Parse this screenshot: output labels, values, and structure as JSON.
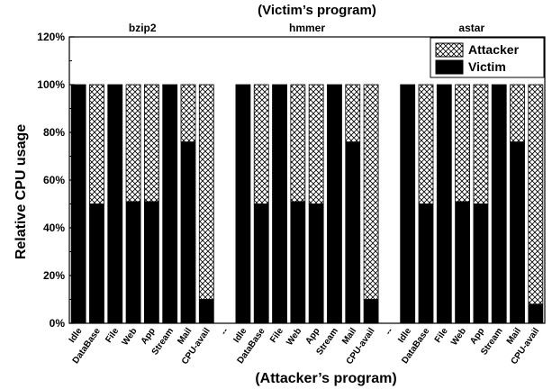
{
  "chart_data": {
    "type": "bar",
    "stacked": true,
    "title": "(Victim’s program)",
    "xlabel": "(Attacker’s program)",
    "ylabel": "Relative CPU usage",
    "ylim": [
      0,
      120
    ],
    "yticks": [
      "0%",
      "20%",
      "40%",
      "60%",
      "80%",
      "100%",
      "120%"
    ],
    "grid": false,
    "legend_position": "top-right",
    "series": [
      {
        "name": "Attacker",
        "color": "#ffffff",
        "pattern": "crosshatch"
      },
      {
        "name": "Victim",
        "color": "#000000",
        "pattern": "solid"
      }
    ],
    "categories": [
      "Idle",
      "DataBase",
      "File",
      "Web",
      "App",
      "Stream",
      "Mail",
      "CPU-avail",
      "--",
      "Idle",
      "DataBase",
      "File",
      "Web",
      "App",
      "Stream",
      "Mail",
      "CPU-avail",
      "--",
      "Idle",
      "DataBase",
      "File",
      "Web",
      "App",
      "Stream",
      "Mail",
      "CPU-avail"
    ],
    "groups": [
      {
        "name": "bzip2",
        "categories": [
          "Idle",
          "DataBase",
          "File",
          "Web",
          "App",
          "Stream",
          "Mail",
          "CPU-avail"
        ],
        "victim": [
          100,
          50,
          100,
          51,
          51,
          100,
          76,
          10
        ],
        "attacker": [
          0,
          50,
          0,
          49,
          49,
          0,
          24,
          90
        ]
      },
      {
        "name": "hmmer",
        "categories": [
          "Idle",
          "DataBase",
          "File",
          "Web",
          "App",
          "Stream",
          "Mail",
          "CPU-avail"
        ],
        "victim": [
          100,
          50,
          100,
          51,
          50,
          100,
          76,
          10
        ],
        "attacker": [
          0,
          50,
          0,
          49,
          50,
          0,
          24,
          90
        ]
      },
      {
        "name": "astar",
        "categories": [
          "Idle",
          "DataBase",
          "File",
          "Web",
          "App",
          "Stream",
          "Mail",
          "CPU-avail"
        ],
        "victim": [
          100,
          50,
          100,
          51,
          50,
          100,
          76,
          8
        ],
        "attacker": [
          0,
          50,
          0,
          49,
          50,
          0,
          24,
          92
        ]
      }
    ],
    "separator_label": "--"
  }
}
